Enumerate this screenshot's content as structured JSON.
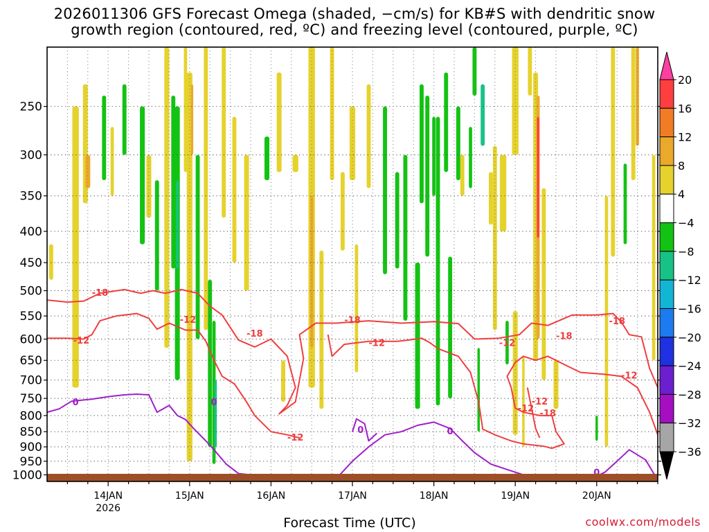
{
  "title_line1": "2026011306 GFS Forecast Omega (shaded, −cm/s) for KB#S with dendritic snow",
  "title_line2": "growth region (contoured, red, ºC) and freezing level (contoured, purple, ºC)",
  "credit": "coolwx.com/models",
  "chart_data": {
    "type": "heatmap",
    "title": "2026011306 GFS Forecast Omega (shaded, −cm/s) for KB#S with dendritic snow growth region (contoured, red, ºC) and freezing level (contoured, purple, ºC)",
    "xlabel": "Forecast Time (UTC)",
    "ylabel": "",
    "x_tick_labels": [
      "14JAN",
      "15JAN",
      "16JAN",
      "17JAN",
      "18JAN",
      "19JAN",
      "20JAN"
    ],
    "x_sub_label": "2026",
    "x_range_days": [
      13.25,
      20.75
    ],
    "y_tick_labels": [
      250,
      300,
      350,
      400,
      450,
      500,
      550,
      600,
      650,
      700,
      750,
      800,
      850,
      900,
      950,
      1000
    ],
    "y_range_hpa": [
      200,
      1025
    ],
    "y_scale": "log-pressure",
    "grid": true,
    "colorbar": {
      "labels": [
        20,
        16,
        12,
        8,
        4,
        -4,
        -8,
        -12,
        -16,
        -20,
        -24,
        -28,
        -32,
        -36
      ],
      "colors": [
        "#ff3fa0",
        "#ff3f3f",
        "#f07c26",
        "#eaa92a",
        "#e6d22c",
        "#ffffff",
        "#13c313",
        "#17c286",
        "#13b5d4",
        "#1d7bf0",
        "#1f31e0",
        "#6b1fcf",
        "#a40fc2",
        "#a6a6a6",
        "#000000"
      ]
    },
    "contours": [
      {
        "label": "-12",
        "color": "#ef3e3e",
        "label_positions": [
          [
            "13.67",
            602
          ],
          [
            "14.98",
            557
          ],
          [
            "16.3",
            868
          ],
          [
            "17.3",
            608
          ],
          [
            "18.9",
            608
          ],
          [
            "19.13",
            778
          ],
          [
            "19.3",
            758
          ],
          [
            "20.4",
            687
          ]
        ]
      },
      {
        "label": "-18",
        "color": "#ef3e3e",
        "label_positions": [
          [
            "13.9",
            503
          ],
          [
            "15.8",
            587
          ],
          [
            "17.0",
            558
          ],
          [
            "19.4",
            792
          ],
          [
            "19.6",
            592
          ],
          [
            "20.25",
            560
          ]
        ]
      },
      {
        "label": "0",
        "color": "#a01fc8",
        "label_positions": [
          [
            "13.6",
            760
          ],
          [
            "15.3",
            760
          ],
          [
            "17.1",
            843
          ],
          [
            "18.2",
            847
          ],
          [
            "20.0",
            990
          ]
        ]
      }
    ],
    "terrain_color": "#9e4f28"
  }
}
